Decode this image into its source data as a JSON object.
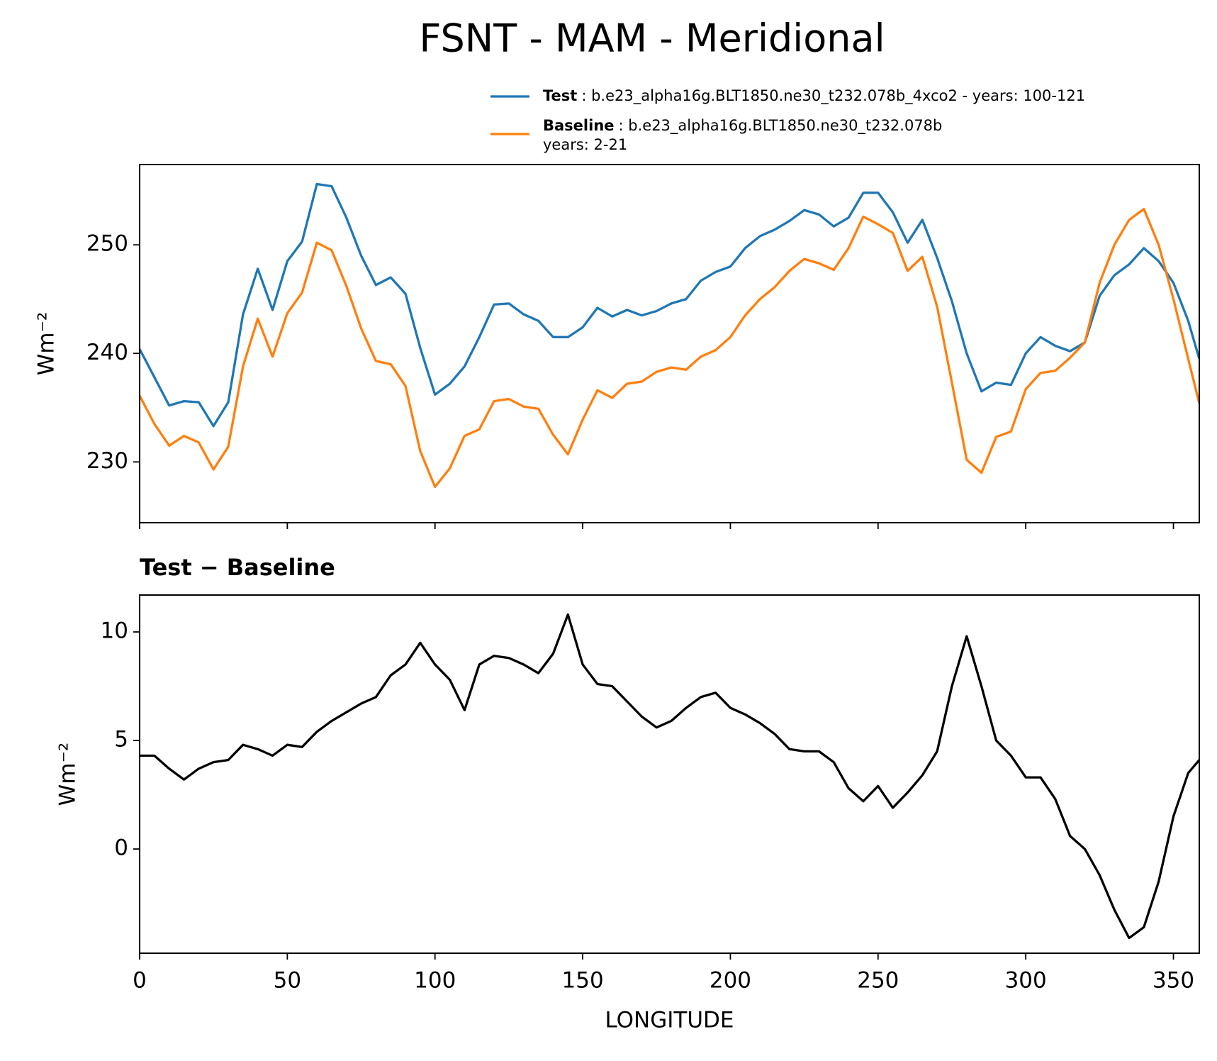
{
  "chart_data": [
    {
      "type": "line",
      "title": "FSNT - MAM - Meridional",
      "ylabel": "Wm⁻²",
      "x": [
        0,
        5,
        10,
        15,
        20,
        25,
        30,
        35,
        40,
        45,
        50,
        55,
        60,
        65,
        70,
        75,
        80,
        85,
        90,
        95,
        100,
        105,
        110,
        115,
        120,
        125,
        130,
        135,
        140,
        145,
        150,
        155,
        160,
        165,
        170,
        175,
        180,
        185,
        190,
        195,
        200,
        205,
        210,
        215,
        220,
        225,
        230,
        235,
        240,
        245,
        250,
        255,
        260,
        265,
        270,
        275,
        280,
        285,
        290,
        295,
        300,
        305,
        310,
        315,
        320,
        325,
        330,
        335,
        340,
        345,
        350,
        355,
        358.75
      ],
      "series": [
        {
          "name": "Test",
          "detail": [
            ": b.e23_alpha16g.BLT1850.ne30_t232.078b_4xco2 - years: 100-121"
          ],
          "color": "#1f77b4",
          "values": [
            240.4,
            237.8,
            235.2,
            235.6,
            235.5,
            233.3,
            235.5,
            243.6,
            247.8,
            244,
            248.5,
            250.3,
            255.6,
            255.4,
            252.5,
            249,
            246.3,
            247,
            245.5,
            240.5,
            236.2,
            237.2,
            238.8,
            241.5,
            244.5,
            244.6,
            243.6,
            243,
            241.5,
            241.5,
            242.4,
            244.2,
            243.4,
            244,
            243.5,
            243.9,
            244.6,
            245,
            246.7,
            247.5,
            248,
            249.7,
            250.8,
            251.4,
            252.2,
            253.2,
            252.8,
            251.7,
            252.5,
            254.8,
            254.8,
            253,
            250.2,
            252.3,
            248.8,
            244.8,
            240,
            236.5,
            237.3,
            237.1,
            240,
            241.5,
            240.7,
            240.2,
            241,
            245.3,
            247.2,
            248.2,
            249.7,
            248.5,
            246.5,
            243,
            239.5
          ]
        },
        {
          "name": "Baseline",
          "detail": [
            ": b.e23_alpha16g.BLT1850.ne30_t232.078b",
            "years: 2-21"
          ],
          "color": "#ff7f0e",
          "values": [
            236.1,
            233.5,
            231.5,
            232.4,
            231.8,
            229.3,
            231.4,
            238.8,
            243.2,
            239.7,
            243.7,
            245.6,
            250.2,
            249.5,
            246.2,
            242.3,
            239.3,
            239.0,
            237.0,
            231.0,
            227.7,
            229.4,
            232.4,
            233.0,
            235.6,
            235.8,
            235.1,
            234.9,
            232.5,
            230.7,
            233.9,
            236.6,
            235.9,
            237.2,
            237.4,
            238.3,
            238.7,
            238.5,
            239.7,
            240.3,
            241.5,
            243.5,
            245.0,
            246.1,
            247.6,
            248.7,
            248.3,
            247.7,
            249.7,
            252.6,
            251.9,
            251.1,
            247.6,
            248.9,
            244.3,
            237.3,
            230.2,
            229.0,
            232.3,
            232.8,
            236.7,
            238.2,
            238.4,
            239.6,
            241.0,
            246.5,
            250.0,
            252.3,
            253.3,
            250.0,
            245.0,
            239.5,
            235.4
          ]
        }
      ],
      "xlim": [
        0,
        358.75
      ],
      "xticks": [
        0,
        50,
        100,
        150,
        200,
        250,
        300,
        350
      ],
      "ylim": [
        224.4,
        257.4
      ],
      "yticks": [
        230,
        240,
        250
      ]
    },
    {
      "type": "line",
      "title": "Test − Baseline",
      "ylabel": "Wm⁻²",
      "xlabel": "LONGITUDE",
      "x": [
        0,
        5,
        10,
        15,
        20,
        25,
        30,
        35,
        40,
        45,
        50,
        55,
        60,
        65,
        70,
        75,
        80,
        85,
        90,
        95,
        100,
        105,
        110,
        115,
        120,
        125,
        130,
        135,
        140,
        145,
        150,
        155,
        160,
        165,
        170,
        175,
        180,
        185,
        190,
        195,
        200,
        205,
        210,
        215,
        220,
        225,
        230,
        235,
        240,
        245,
        250,
        255,
        260,
        265,
        270,
        275,
        280,
        285,
        290,
        295,
        300,
        305,
        310,
        315,
        320,
        325,
        330,
        335,
        340,
        345,
        350,
        355,
        358.75
      ],
      "series": [
        {
          "color": "#000000",
          "values": [
            4.3,
            4.3,
            3.7,
            3.2,
            3.7,
            4.0,
            4.1,
            4.8,
            4.6,
            4.3,
            4.8,
            4.7,
            5.4,
            5.9,
            6.3,
            6.7,
            7.0,
            8.0,
            8.5,
            9.5,
            8.5,
            7.8,
            6.4,
            8.5,
            8.9,
            8.8,
            8.5,
            8.1,
            9.0,
            10.8,
            8.5,
            7.6,
            7.5,
            6.8,
            6.1,
            5.6,
            5.9,
            6.5,
            7.0,
            7.2,
            6.5,
            6.2,
            5.8,
            5.3,
            4.6,
            4.5,
            4.5,
            4.0,
            2.8,
            2.2,
            2.9,
            1.9,
            2.6,
            3.4,
            4.5,
            7.5,
            9.8,
            7.5,
            5.0,
            4.3,
            3.3,
            3.3,
            2.3,
            0.6,
            0.0,
            -1.2,
            -2.8,
            -4.1,
            -3.6,
            -1.5,
            1.5,
            3.5,
            4.1
          ]
        }
      ],
      "xlim": [
        0,
        358.75
      ],
      "xticks": [
        0,
        50,
        100,
        150,
        200,
        250,
        300,
        350
      ],
      "ylim": [
        -4.8,
        11.7
      ],
      "yticks": [
        0,
        5,
        10
      ]
    }
  ]
}
